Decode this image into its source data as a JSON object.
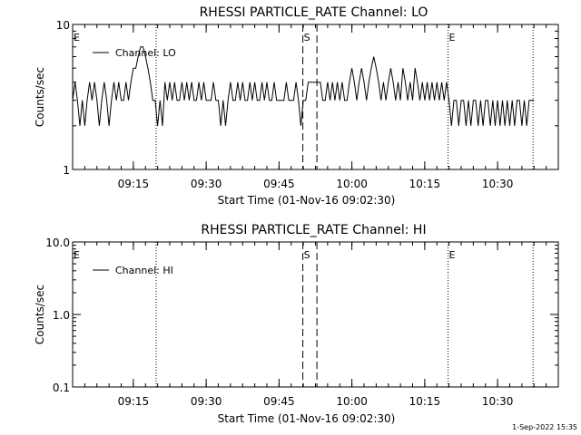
{
  "footer_timestamp": "1-Sep-2022 15:35",
  "chart_data": [
    {
      "type": "line",
      "title": "RHESSI PARTICLE_RATE Channel: LO",
      "xlabel": "Start Time (01-Nov-16 09:02:30)",
      "ylabel": "Counts/sec",
      "y_scale": "log",
      "ylim": [
        1,
        10
      ],
      "y_ticks": [
        1,
        10
      ],
      "y_tick_labels": [
        "1",
        "10"
      ],
      "x_range_min": [
        0,
        100
      ],
      "x_ticks_min": [
        12.5,
        27.5,
        42.5,
        57.5,
        72.5,
        87.5
      ],
      "x_tick_labels": [
        "09:15",
        "09:30",
        "09:45",
        "10:00",
        "10:15",
        "10:30"
      ],
      "legend": {
        "position": "top-left",
        "entries": [
          "Channel: LO"
        ]
      },
      "markers": [
        {
          "label": "E",
          "x_min": 0,
          "style": "none"
        },
        {
          "label": "",
          "x_min": 17.2,
          "style": "dotted"
        },
        {
          "label": "S",
          "x_min": 47.4,
          "style": "dashed"
        },
        {
          "label": "",
          "x_min": 50.3,
          "style": "dashed"
        },
        {
          "label": "E",
          "x_min": 77.3,
          "style": "dotted"
        },
        {
          "label": "",
          "x_min": 94.8,
          "style": "dotted"
        }
      ],
      "series": [
        {
          "name": "Channel: LO",
          "x": [
            0,
            0.5,
            1,
            1.5,
            2,
            2.5,
            3,
            3.5,
            4,
            4.5,
            5,
            5.5,
            6,
            6.5,
            7,
            7.5,
            8,
            8.5,
            9,
            9.5,
            10,
            10.5,
            11,
            11.5,
            12,
            12.5,
            13,
            13.5,
            14,
            14.5,
            15,
            15.5,
            16,
            16.5,
            17,
            17.5,
            18,
            18.5,
            19,
            19.5,
            20,
            20.5,
            21,
            21.5,
            22,
            22.5,
            23,
            23.5,
            24,
            24.5,
            25,
            25.5,
            26,
            26.5,
            27,
            27.5,
            28,
            28.5,
            29,
            29.5,
            30,
            30.5,
            31,
            31.5,
            32,
            32.5,
            33,
            33.5,
            34,
            34.5,
            35,
            35.5,
            36,
            36.5,
            37,
            37.5,
            38,
            38.5,
            39,
            39.5,
            40,
            40.5,
            41,
            41.5,
            42,
            42.5,
            43,
            43.5,
            44,
            44.5,
            45,
            45.5,
            46,
            46.5,
            47,
            47.5,
            48,
            48.5,
            49,
            49.5,
            50,
            50.5,
            51,
            51.5,
            52,
            52.5,
            53,
            53.5,
            54,
            54.5,
            55,
            55.5,
            56,
            56.5,
            57,
            57.5,
            58,
            58.5,
            59,
            59.5,
            60,
            60.5,
            61,
            61.5,
            62,
            62.5,
            63,
            63.5,
            64,
            64.5,
            65,
            65.5,
            66,
            66.5,
            67,
            67.5,
            68,
            68.5,
            69,
            69.5,
            70,
            70.5,
            71,
            71.5,
            72,
            72.5,
            73,
            73.5,
            74,
            74.5,
            75,
            75.5,
            76,
            76.5,
            77,
            77.5,
            78,
            78.5,
            79,
            79.5,
            80,
            80.5,
            81,
            81.5,
            82,
            82.5,
            83,
            83.5,
            84,
            84.5,
            85,
            85.5,
            86,
            86.5,
            87,
            87.5,
            88,
            88.5,
            89,
            89.5,
            90,
            90.5,
            91,
            91.5,
            92,
            92.5,
            93,
            93.5,
            94,
            94.5,
            95
          ],
          "y": [
            3,
            4,
            3,
            2,
            3,
            2,
            3,
            4,
            3,
            4,
            3,
            2,
            3,
            4,
            3,
            2,
            3,
            4,
            3,
            4,
            3,
            3,
            4,
            3,
            4,
            5,
            5,
            6,
            7,
            7,
            6,
            5,
            4,
            3,
            3,
            2,
            3,
            2,
            4,
            3,
            4,
            3,
            4,
            3,
            3,
            4,
            3,
            4,
            3,
            4,
            3,
            3,
            4,
            3,
            4,
            3,
            3,
            3,
            4,
            3,
            3,
            2,
            3,
            2,
            3,
            4,
            3,
            3,
            4,
            3,
            4,
            3,
            3,
            4,
            3,
            4,
            3,
            3,
            4,
            3,
            4,
            3,
            3,
            4,
            3,
            3,
            3,
            3,
            4,
            3,
            3,
            3,
            4,
            3,
            2,
            3,
            3,
            4,
            4,
            4,
            4,
            4,
            4,
            3,
            3,
            4,
            3,
            4,
            3,
            4,
            3,
            4,
            3,
            3,
            4,
            5,
            4,
            3,
            4,
            5,
            4,
            3,
            4,
            5,
            6,
            5,
            4,
            3,
            4,
            3,
            4,
            5,
            4,
            3,
            4,
            3,
            5,
            4,
            3,
            4,
            3,
            5,
            4,
            3,
            4,
            3,
            4,
            3,
            4,
            3,
            4,
            3,
            4,
            3,
            4,
            3,
            2,
            3,
            3,
            2,
            3,
            3,
            2,
            3,
            2,
            3,
            3,
            2,
            3,
            2,
            3,
            3,
            2,
            3,
            2,
            3,
            2,
            3,
            2,
            3,
            2,
            3,
            2,
            3,
            3,
            2,
            3,
            2,
            3,
            3,
            3
          ]
        }
      ]
    },
    {
      "type": "line",
      "title": "RHESSI PARTICLE_RATE Channel: HI",
      "xlabel": "Start Time (01-Nov-16 09:02:30)",
      "ylabel": "Counts/sec",
      "y_scale": "log",
      "ylim": [
        0.1,
        10
      ],
      "y_ticks": [
        0.1,
        1,
        10
      ],
      "y_tick_labels": [
        "0.1",
        "1.0",
        "10.0"
      ],
      "x_range_min": [
        0,
        100
      ],
      "x_ticks_min": [
        12.5,
        27.5,
        42.5,
        57.5,
        72.5,
        87.5
      ],
      "x_tick_labels": [
        "09:15",
        "09:30",
        "09:45",
        "10:00",
        "10:15",
        "10:30"
      ],
      "legend": {
        "position": "top-left",
        "entries": [
          "Channel: HI"
        ]
      },
      "markers": [
        {
          "label": "E",
          "x_min": 0,
          "style": "none"
        },
        {
          "label": "",
          "x_min": 17.2,
          "style": "dotted"
        },
        {
          "label": "S",
          "x_min": 47.4,
          "style": "dashed"
        },
        {
          "label": "",
          "x_min": 50.3,
          "style": "dashed"
        },
        {
          "label": "E",
          "x_min": 77.3,
          "style": "dotted"
        },
        {
          "label": "",
          "x_min": 94.8,
          "style": "dotted"
        }
      ],
      "series": [
        {
          "name": "Channel: HI",
          "x": [],
          "y": []
        }
      ]
    }
  ]
}
